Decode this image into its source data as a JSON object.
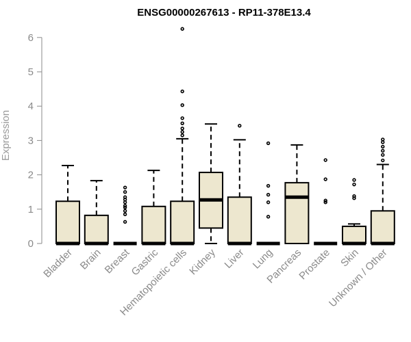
{
  "chart_data": {
    "type": "box",
    "title": "ENSG00000267613 - RP11-378E13.4",
    "xlabel": "",
    "ylabel": "Expression",
    "ylim": [
      0,
      6.25
    ],
    "yticks": [
      "0",
      "1",
      "2",
      "3",
      "4",
      "5",
      "6"
    ],
    "grid": false,
    "box_fill": "#ede7cf",
    "categories": [
      "Bladder",
      "Brain",
      "Breast",
      "Gastric",
      "Hematopoietic cells",
      "Kidney",
      "Liver",
      "Lung",
      "Pancreas",
      "Prostate",
      "Skin",
      "Unknown / Other"
    ],
    "boxes": [
      {
        "name": "Bladder",
        "q1": 0,
        "median": 0,
        "q3": 1.23,
        "whisker_low": 0,
        "whisker_high": 2.27,
        "outliers": []
      },
      {
        "name": "Brain",
        "q1": 0,
        "median": 0,
        "q3": 0.82,
        "whisker_low": 0,
        "whisker_high": 1.83,
        "outliers": []
      },
      {
        "name": "Breast",
        "q1": 0,
        "median": 0,
        "q3": 0,
        "whisker_low": 0,
        "whisker_high": 0,
        "outliers": [
          0.63,
          0.85,
          0.95,
          1.05,
          1.1,
          1.2,
          1.28,
          1.35,
          1.5,
          1.63
        ]
      },
      {
        "name": "Gastric",
        "q1": 0,
        "median": 0,
        "q3": 1.08,
        "whisker_low": 0,
        "whisker_high": 2.13,
        "outliers": []
      },
      {
        "name": "Hematopoietic cells",
        "q1": 0,
        "median": 0,
        "q3": 1.23,
        "whisker_low": 0,
        "whisker_high": 3.05,
        "outliers": [
          3.15,
          3.25,
          3.35,
          3.5,
          3.65,
          4.03,
          4.43,
          6.25
        ]
      },
      {
        "name": "Kidney",
        "q1": 0.45,
        "median": 1.27,
        "q3": 2.07,
        "whisker_low": 0,
        "whisker_high": 3.48,
        "outliers": []
      },
      {
        "name": "Liver",
        "q1": 0,
        "median": 0,
        "q3": 1.35,
        "whisker_low": 0,
        "whisker_high": 3.02,
        "outliers": [
          3.43
        ]
      },
      {
        "name": "Lung",
        "q1": 0,
        "median": 0,
        "q3": 0,
        "whisker_low": 0,
        "whisker_high": 0,
        "outliers": [
          0.78,
          1.2,
          1.42,
          1.68,
          2.92
        ]
      },
      {
        "name": "Pancreas",
        "q1": 0,
        "median": 1.35,
        "q3": 1.77,
        "whisker_low": 0,
        "whisker_high": 2.87,
        "outliers": []
      },
      {
        "name": "Prostate",
        "q1": 0,
        "median": 0,
        "q3": 0,
        "whisker_low": 0,
        "whisker_high": 0,
        "outliers": [
          1.2,
          1.25,
          1.87,
          2.43
        ]
      },
      {
        "name": "Skin",
        "q1": 0,
        "median": 0,
        "q3": 0.5,
        "whisker_low": 0,
        "whisker_high": 0.57,
        "outliers": [
          1.32,
          1.38,
          1.72,
          1.85
        ]
      },
      {
        "name": "Unknown / Other",
        "q1": 0,
        "median": 0,
        "q3": 0.95,
        "whisker_low": 0,
        "whisker_high": 2.3,
        "outliers": [
          2.42,
          2.58,
          2.7,
          2.82,
          2.95,
          3.03
        ]
      }
    ]
  }
}
